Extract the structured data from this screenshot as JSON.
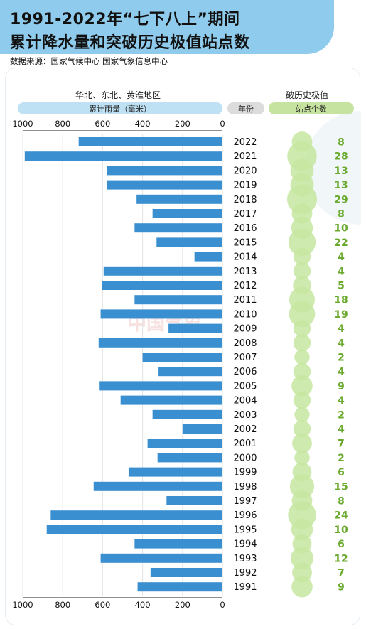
{
  "header": {
    "title_line1": "1991-2022年“七下八上”期间",
    "title_line2": "累计降水量和突破历史极值站点数",
    "source": "数据来源：国家气候中心 国家气象信息中心"
  },
  "columns": {
    "left_region": "华北、东北、黄淮地区",
    "left_metric": "累计雨量（毫米）",
    "year": "年份",
    "right_title": "破历史极值",
    "right_metric": "站点个数"
  },
  "watermark": "中国气象",
  "colors": {
    "title_band": "#8fcbec",
    "bar": "#3a8fd0",
    "header_pill_blue": "#bfe1f4",
    "header_pill_gray": "#dcdcdc",
    "header_pill_green": "#c6e3a0",
    "bubble": "#c6e6a0",
    "count_text": "#6aaa2e"
  },
  "chart_data": {
    "type": "bar",
    "orientation": "horizontal",
    "x_direction": "reversed",
    "xlim": [
      0,
      1000
    ],
    "x_ticks": [
      "1000",
      "800",
      "600",
      "400",
      "200",
      "0"
    ],
    "x_tick_values": [
      1000,
      800,
      600,
      400,
      200,
      0
    ],
    "grid": true,
    "categories": [
      "2022",
      "2021",
      "2020",
      "2019",
      "2018",
      "2017",
      "2016",
      "2015",
      "2014",
      "2013",
      "2012",
      "2011",
      "2010",
      "2009",
      "2008",
      "2007",
      "2006",
      "2005",
      "2004",
      "2003",
      "2002",
      "2001",
      "2000",
      "1999",
      "1998",
      "1997",
      "1996",
      "1995",
      "1994",
      "1993",
      "1992",
      "1991"
    ],
    "values": [
      720,
      990,
      580,
      580,
      430,
      350,
      440,
      330,
      140,
      595,
      605,
      440,
      610,
      270,
      620,
      400,
      320,
      615,
      510,
      350,
      200,
      375,
      325,
      470,
      645,
      280,
      860,
      880,
      440,
      610,
      360,
      425
    ],
    "bubble_counts": [
      8,
      28,
      13,
      13,
      29,
      8,
      10,
      22,
      4,
      4,
      5,
      18,
      19,
      4,
      4,
      2,
      4,
      9,
      4,
      2,
      4,
      7,
      2,
      6,
      15,
      8,
      24,
      10,
      6,
      12,
      7,
      9
    ],
    "count_labels": [
      "8",
      "28",
      "13",
      "13",
      "29",
      "8",
      "10",
      "22",
      "4",
      "4",
      "5",
      "18",
      "19",
      "4",
      "4",
      "2",
      "4",
      "9",
      "4",
      "2",
      "4",
      "7",
      "2",
      "6",
      "15",
      "8",
      "24",
      "10",
      "6",
      "12",
      "7",
      "9"
    ]
  }
}
